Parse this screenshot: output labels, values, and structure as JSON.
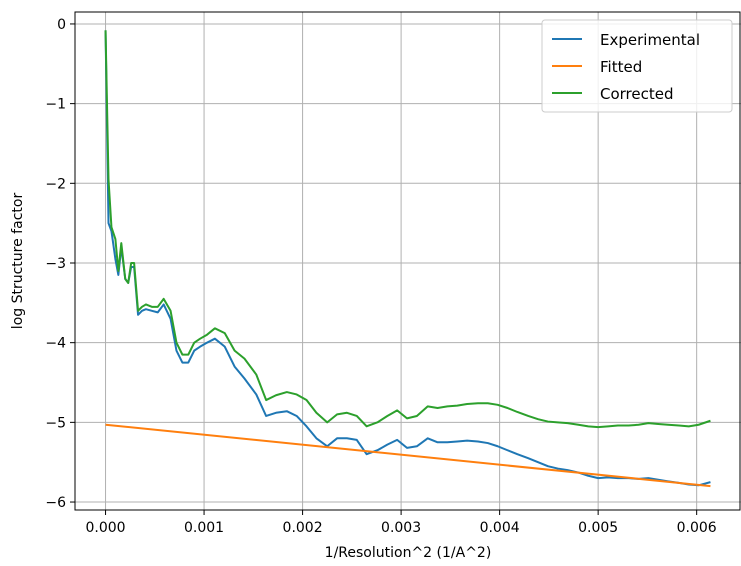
{
  "chart_data": {
    "type": "line",
    "xlabel": "1/Resolution^2 (1/A^2)",
    "ylabel": "log Structure factor",
    "xlim": [
      -0.00031,
      0.00645
    ],
    "ylim": [
      -6.1,
      0.15
    ],
    "xticks": [
      0.0,
      0.001,
      0.002,
      0.003,
      0.004,
      0.005,
      0.006
    ],
    "xtick_labels": [
      "0.000",
      "0.001",
      "0.002",
      "0.003",
      "0.004",
      "0.005",
      "0.006"
    ],
    "yticks": [
      0,
      -1,
      -2,
      -3,
      -4,
      -5,
      -6
    ],
    "ytick_labels": [
      "0",
      "−1",
      "−2",
      "−3",
      "−4",
      "−5",
      "−6"
    ],
    "grid": true,
    "legend_position": "top-right",
    "series": [
      {
        "name": "Experimental",
        "color": "#1f77b4",
        "x": [
          0.0,
          3e-05,
          6e-05,
          0.0001,
          0.00013,
          0.00016,
          0.0002,
          0.00023,
          0.00026,
          0.00029,
          0.00033,
          0.00037,
          0.00041,
          0.00047,
          0.00053,
          0.00059,
          0.00066,
          0.00072,
          0.00078,
          0.00084,
          0.0009,
          0.00096,
          0.00103,
          0.00111,
          0.00121,
          0.00131,
          0.00141,
          0.00153,
          0.00163,
          0.00173,
          0.00184,
          0.00194,
          0.00204,
          0.00214,
          0.00225,
          0.00235,
          0.00245,
          0.00255,
          0.00265,
          0.00276,
          0.00286,
          0.00296,
          0.00306,
          0.00316,
          0.00327,
          0.00337,
          0.00347,
          0.00357,
          0.00367,
          0.00378,
          0.00388,
          0.00398,
          0.00408,
          0.00418,
          0.00429,
          0.00439,
          0.00449,
          0.00459,
          0.00469,
          0.0048,
          0.0049,
          0.005,
          0.0051,
          0.0052,
          0.00531,
          0.00541,
          0.00551,
          0.00561,
          0.00571,
          0.00582,
          0.00592,
          0.00602,
          0.00614
        ],
        "y": [
          -0.08,
          -2.5,
          -2.6,
          -2.95,
          -3.15,
          -2.8,
          -3.2,
          -3.25,
          -3.05,
          -3.05,
          -3.65,
          -3.6,
          -3.58,
          -3.6,
          -3.62,
          -3.52,
          -3.7,
          -4.1,
          -4.25,
          -4.25,
          -4.1,
          -4.05,
          -4.0,
          -3.95,
          -4.05,
          -4.3,
          -4.45,
          -4.65,
          -4.92,
          -4.88,
          -4.86,
          -4.92,
          -5.05,
          -5.2,
          -5.3,
          -5.2,
          -5.2,
          -5.22,
          -5.4,
          -5.35,
          -5.28,
          -5.22,
          -5.32,
          -5.3,
          -5.2,
          -5.25,
          -5.25,
          -5.24,
          -5.23,
          -5.24,
          -5.26,
          -5.3,
          -5.35,
          -5.4,
          -5.45,
          -5.5,
          -5.55,
          -5.58,
          -5.6,
          -5.63,
          -5.67,
          -5.7,
          -5.69,
          -5.7,
          -5.7,
          -5.71,
          -5.7,
          -5.72,
          -5.74,
          -5.76,
          -5.78,
          -5.79,
          -5.75
        ]
      },
      {
        "name": "Fitted",
        "color": "#ff7f0e",
        "x": [
          0.0,
          0.00614
        ],
        "y": [
          -5.03,
          -5.8
        ]
      },
      {
        "name": "Corrected",
        "color": "#2ca02c",
        "x": [
          0.0,
          3e-05,
          6e-05,
          0.0001,
          0.00013,
          0.00016,
          0.0002,
          0.00023,
          0.00026,
          0.00029,
          0.00033,
          0.00037,
          0.00041,
          0.00047,
          0.00053,
          0.00059,
          0.00066,
          0.00072,
          0.00078,
          0.00084,
          0.0009,
          0.00096,
          0.00103,
          0.00111,
          0.00121,
          0.00131,
          0.00141,
          0.00153,
          0.00163,
          0.00173,
          0.00184,
          0.00194,
          0.00204,
          0.00214,
          0.00225,
          0.00235,
          0.00245,
          0.00255,
          0.00265,
          0.00276,
          0.00286,
          0.00296,
          0.00306,
          0.00316,
          0.00327,
          0.00337,
          0.00347,
          0.00357,
          0.00367,
          0.00378,
          0.00388,
          0.00398,
          0.00408,
          0.00418,
          0.00429,
          0.00439,
          0.00449,
          0.00459,
          0.00469,
          0.0048,
          0.0049,
          0.005,
          0.0051,
          0.0052,
          0.00531,
          0.00541,
          0.00551,
          0.00561,
          0.00571,
          0.00582,
          0.00592,
          0.00602,
          0.00614
        ],
        "y": [
          -0.08,
          -1.95,
          -2.55,
          -2.7,
          -3.1,
          -2.75,
          -3.2,
          -3.25,
          -3.0,
          -3.0,
          -3.6,
          -3.55,
          -3.52,
          -3.55,
          -3.55,
          -3.45,
          -3.6,
          -4.0,
          -4.15,
          -4.15,
          -4.0,
          -3.95,
          -3.9,
          -3.82,
          -3.88,
          -4.1,
          -4.2,
          -4.4,
          -4.72,
          -4.66,
          -4.62,
          -4.65,
          -4.72,
          -4.88,
          -5.0,
          -4.9,
          -4.88,
          -4.92,
          -5.05,
          -5.0,
          -4.92,
          -4.85,
          -4.95,
          -4.92,
          -4.8,
          -4.82,
          -4.8,
          -4.79,
          -4.77,
          -4.76,
          -4.76,
          -4.78,
          -4.82,
          -4.87,
          -4.92,
          -4.96,
          -4.99,
          -5.0,
          -5.01,
          -5.03,
          -5.05,
          -5.06,
          -5.05,
          -5.04,
          -5.04,
          -5.03,
          -5.01,
          -5.02,
          -5.03,
          -5.04,
          -5.05,
          -5.03,
          -4.98
        ]
      }
    ]
  }
}
